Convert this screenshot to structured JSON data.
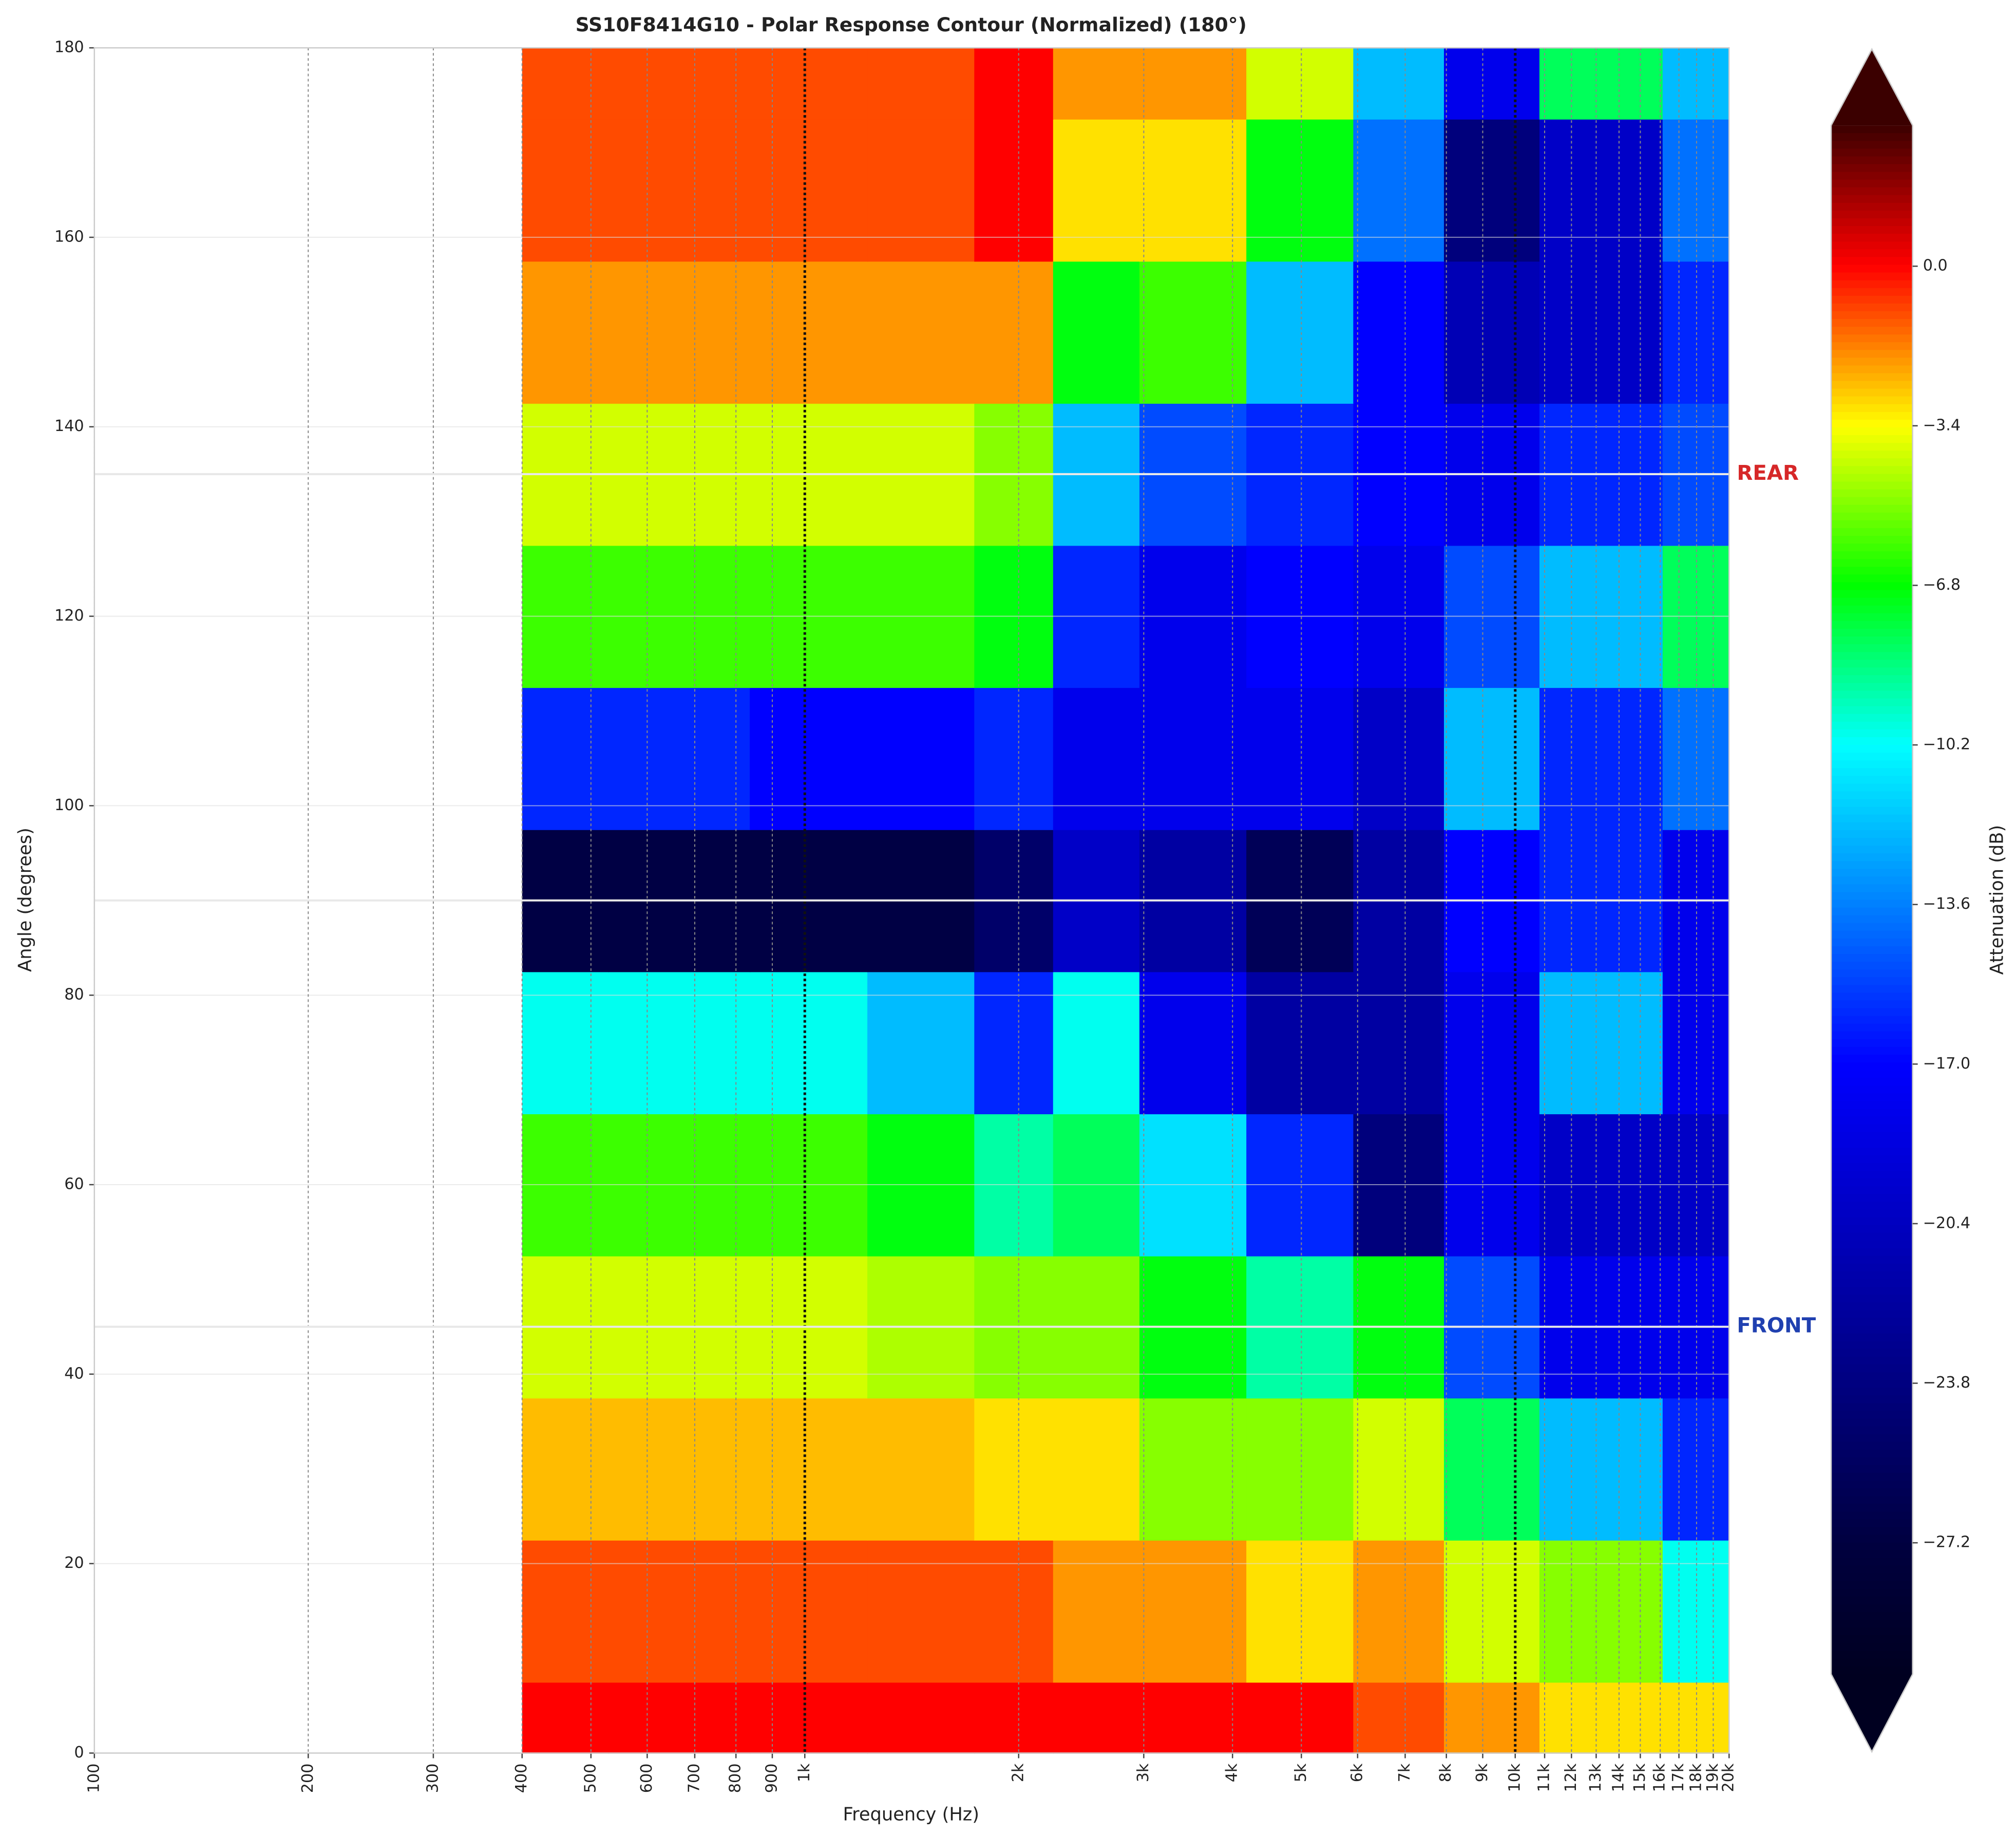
{
  "chart_data": {
    "type": "heatmap",
    "title": "SS10F8414G10 - Polar Response Contour (Normalized) (180°)",
    "x_label": "Frequency (Hz)",
    "y_label": "Angle (degrees)",
    "colorbar_label": "Attenuation (dB)",
    "xscale": "log",
    "xlim": [
      100,
      20000
    ],
    "ylim": [
      0,
      180
    ],
    "xticks": [
      100,
      200,
      300,
      400,
      500,
      600,
      700,
      800,
      900,
      {
        "value": 1000,
        "label": "1k"
      },
      {
        "value": 2000,
        "label": "2k"
      },
      {
        "value": 3000,
        "label": "3k"
      },
      {
        "value": 4000,
        "label": "4k"
      },
      {
        "value": 5000,
        "label": "5k"
      },
      {
        "value": 6000,
        "label": "6k"
      },
      {
        "value": 7000,
        "label": "7k"
      },
      {
        "value": 8000,
        "label": "8k"
      },
      {
        "value": 9000,
        "label": "9k"
      },
      {
        "value": 10000,
        "label": "10k"
      },
      {
        "value": 11000,
        "label": "11k"
      },
      {
        "value": 12000,
        "label": "12k"
      },
      {
        "value": 13000,
        "label": "13k"
      },
      {
        "value": 14000,
        "label": "14k"
      },
      {
        "value": 15000,
        "label": "15k"
      },
      {
        "value": 16000,
        "label": "16k"
      },
      {
        "value": 17000,
        "label": "17k"
      },
      {
        "value": 18000,
        "label": "18k"
      },
      {
        "value": 19000,
        "label": "19k"
      },
      {
        "value": 20000,
        "label": "20k"
      }
    ],
    "yticks": [
      0,
      20,
      40,
      60,
      80,
      100,
      120,
      140,
      160,
      180
    ],
    "clim": [
      -30,
      3
    ],
    "cticks": [
      {
        "value": 0,
        "label": "0.0"
      },
      {
        "value": -3.4,
        "label": "−3.4"
      },
      {
        "value": -6.8,
        "label": "−6.8"
      },
      {
        "value": -10.2,
        "label": "−10.2"
      },
      {
        "value": -13.6,
        "label": "−13.6"
      },
      {
        "value": -17,
        "label": "−17.0"
      },
      {
        "value": -20.4,
        "label": "−20.4"
      },
      {
        "value": -23.8,
        "label": "−23.8"
      },
      {
        "value": -27.2,
        "label": "−27.2"
      }
    ],
    "colorscale": [
      [
        3,
        "#3b0000"
      ],
      [
        1.5,
        "#a00000"
      ],
      [
        0,
        "#ff0000"
      ],
      [
        -1.7,
        "#ff8000"
      ],
      [
        -3.4,
        "#ffff00"
      ],
      [
        -6.8,
        "#00ff00"
      ],
      [
        -10.2,
        "#00ffff"
      ],
      [
        -13.6,
        "#0080ff"
      ],
      [
        -17,
        "#0000ff"
      ],
      [
        -20.4,
        "#0000c0"
      ],
      [
        -23.8,
        "#000080"
      ],
      [
        -27.2,
        "#000040"
      ],
      [
        -30,
        "#000020"
      ]
    ],
    "x": [
      400,
      700,
      1000,
      1500,
      2000,
      2500,
      3500,
      5000,
      7000,
      9000,
      13000,
      20000
    ],
    "y": [
      0,
      15,
      30,
      45,
      60,
      75,
      90,
      105,
      120,
      135,
      150,
      165,
      180
    ],
    "z": [
      [
        0,
        0,
        0,
        0,
        0,
        0,
        0,
        0,
        -1,
        -2,
        -3,
        -3
      ],
      [
        -1,
        -1,
        -1,
        -1,
        -1,
        -2,
        -2,
        -3,
        -2,
        -4,
        -5,
        -10
      ],
      [
        -2.5,
        -2.5,
        -2.5,
        -2.5,
        -3,
        -3,
        -5,
        -5,
        -4,
        -8,
        -12,
        -16
      ],
      [
        -4,
        -4,
        -4,
        -4.5,
        -5,
        -5,
        -7,
        -9,
        -7,
        -15,
        -18,
        -18
      ],
      [
        -6,
        -6,
        -6,
        -7,
        -9,
        -8,
        -11,
        -16,
        -24,
        -18,
        -20,
        -20
      ],
      [
        -10,
        -10,
        -10,
        -12,
        -16,
        -10,
        -18,
        -22,
        -22,
        -18,
        -12,
        -18
      ],
      [
        -27,
        -27,
        -27,
        -27,
        -25,
        -20,
        -22,
        -26,
        -22,
        -17,
        -16,
        -18
      ],
      [
        -16,
        -16,
        -17,
        -17,
        -16,
        -18,
        -18,
        -18,
        -20,
        -12,
        -16,
        -14
      ],
      [
        -6,
        -6,
        -6,
        -6,
        -7,
        -16,
        -18,
        -17,
        -18,
        -15,
        -12,
        -8
      ],
      [
        -4,
        -4,
        -4,
        -4,
        -5,
        -12,
        -15,
        -16,
        -17,
        -18,
        -16,
        -15
      ],
      [
        -2,
        -2,
        -2,
        -2,
        -2,
        -7,
        -6,
        -12,
        -17,
        -21,
        -20,
        -16
      ],
      [
        -1,
        -1,
        -1,
        -1,
        0,
        -3,
        -3,
        -7,
        -14,
        -24,
        -20,
        -14
      ],
      [
        -1,
        -1,
        -1,
        -1,
        0,
        -2,
        -2,
        -4,
        -12,
        -18,
        -8,
        -12
      ]
    ],
    "reference_lines": [
      45,
      90,
      135
    ],
    "annotations": [
      {
        "text": "REAR",
        "y": 135,
        "color": "#d62728"
      },
      {
        "text": "FRONT",
        "y": 45,
        "color": "#2040b0"
      }
    ],
    "grid": true
  }
}
